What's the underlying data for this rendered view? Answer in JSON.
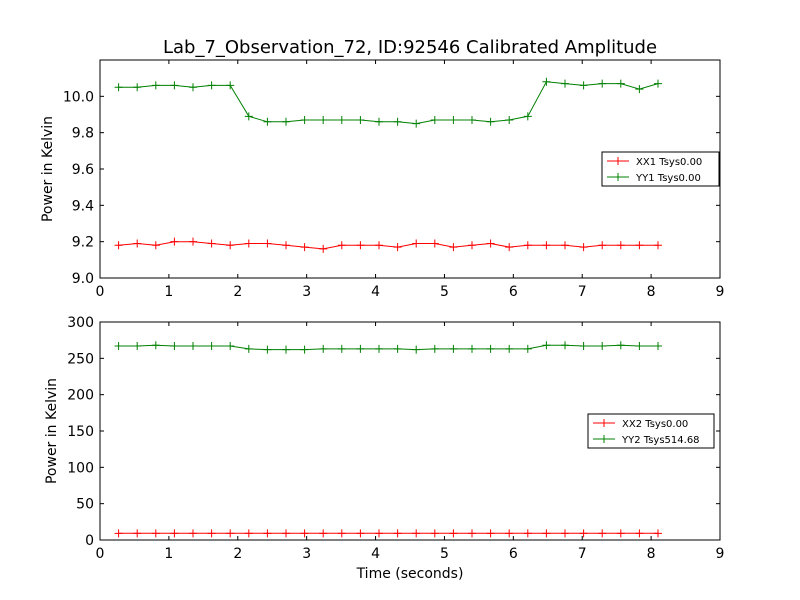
{
  "title": "Lab_7_Observation_72, ID:92546 Calibrated Amplitude",
  "xlabel": "Time (seconds)",
  "colors": {
    "xx": "#ff0000",
    "yy": "#008000"
  },
  "chart_data": [
    {
      "type": "line",
      "ylabel": "Power in Kelvin",
      "xlim": [
        0,
        9
      ],
      "ylim": [
        9.0,
        10.2
      ],
      "x_ticks": [
        0,
        1,
        2,
        3,
        4,
        5,
        6,
        7,
        8,
        9
      ],
      "y_ticks": [
        9.0,
        9.2,
        9.4,
        9.6,
        9.8,
        10.0
      ],
      "y_tick_decimals": 1,
      "legend_position": "right",
      "grid": false,
      "series": [
        {
          "name": "XX1 Tsys0.00",
          "color": "#ff0000",
          "x": [
            0.27,
            0.54,
            0.81,
            1.08,
            1.35,
            1.62,
            1.89,
            2.16,
            2.43,
            2.7,
            2.97,
            3.24,
            3.51,
            3.78,
            4.05,
            4.32,
            4.59,
            4.86,
            5.13,
            5.4,
            5.67,
            5.94,
            6.21,
            6.48,
            6.75,
            7.02,
            7.29,
            7.56,
            7.83,
            8.1
          ],
          "y": [
            9.18,
            9.19,
            9.18,
            9.2,
            9.2,
            9.19,
            9.18,
            9.19,
            9.19,
            9.18,
            9.17,
            9.16,
            9.18,
            9.18,
            9.18,
            9.17,
            9.19,
            9.19,
            9.17,
            9.18,
            9.19,
            9.17,
            9.18,
            9.18,
            9.18,
            9.17,
            9.18,
            9.18,
            9.18,
            9.18
          ]
        },
        {
          "name": "YY1 Tsys0.00",
          "color": "#008000",
          "x": [
            0.27,
            0.54,
            0.81,
            1.08,
            1.35,
            1.62,
            1.89,
            2.16,
            2.43,
            2.7,
            2.97,
            3.24,
            3.51,
            3.78,
            4.05,
            4.32,
            4.59,
            4.86,
            5.13,
            5.4,
            5.67,
            5.94,
            6.21,
            6.48,
            6.75,
            7.02,
            7.29,
            7.56,
            7.83,
            8.1
          ],
          "y": [
            10.05,
            10.05,
            10.06,
            10.06,
            10.05,
            10.06,
            10.06,
            9.89,
            9.86,
            9.86,
            9.87,
            9.87,
            9.87,
            9.87,
            9.86,
            9.86,
            9.85,
            9.87,
            9.87,
            9.87,
            9.86,
            9.87,
            9.89,
            10.08,
            10.07,
            10.06,
            10.07,
            10.07,
            10.04,
            10.07
          ]
        }
      ]
    },
    {
      "type": "line",
      "ylabel": "Power in Kelvin",
      "xlim": [
        0,
        9
      ],
      "ylim": [
        0,
        300
      ],
      "x_ticks": [
        0,
        1,
        2,
        3,
        4,
        5,
        6,
        7,
        8,
        9
      ],
      "y_ticks": [
        0,
        50,
        100,
        150,
        200,
        250,
        300
      ],
      "y_tick_decimals": 0,
      "legend_position": "right",
      "grid": false,
      "series": [
        {
          "name": "XX2 Tsys0.00",
          "color": "#ff0000",
          "x": [
            0.27,
            0.54,
            0.81,
            1.08,
            1.35,
            1.62,
            1.89,
            2.16,
            2.43,
            2.7,
            2.97,
            3.24,
            3.51,
            3.78,
            4.05,
            4.32,
            4.59,
            4.86,
            5.13,
            5.4,
            5.67,
            5.94,
            6.21,
            6.48,
            6.75,
            7.02,
            7.29,
            7.56,
            7.83,
            8.1
          ],
          "y": [
            9.2,
            9.2,
            9.2,
            9.2,
            9.2,
            9.2,
            9.2,
            9.2,
            9.2,
            9.2,
            9.2,
            9.2,
            9.2,
            9.2,
            9.2,
            9.2,
            9.2,
            9.2,
            9.2,
            9.2,
            9.2,
            9.2,
            9.2,
            9.2,
            9.2,
            9.2,
            9.2,
            9.2,
            9.2,
            9.2
          ]
        },
        {
          "name": "YY2 Tsys514.68",
          "color": "#008000",
          "x": [
            0.27,
            0.54,
            0.81,
            1.08,
            1.35,
            1.62,
            1.89,
            2.16,
            2.43,
            2.7,
            2.97,
            3.24,
            3.51,
            3.78,
            4.05,
            4.32,
            4.59,
            4.86,
            5.13,
            5.4,
            5.67,
            5.94,
            6.21,
            6.48,
            6.75,
            7.02,
            7.29,
            7.56,
            7.83,
            8.1
          ],
          "y": [
            267,
            267,
            268,
            267,
            267,
            267,
            267,
            263,
            262,
            262,
            262,
            263,
            263,
            263,
            263,
            263,
            262,
            263,
            263,
            263,
            263,
            263,
            263,
            268,
            268,
            267,
            267,
            268,
            267,
            267
          ]
        }
      ]
    }
  ]
}
